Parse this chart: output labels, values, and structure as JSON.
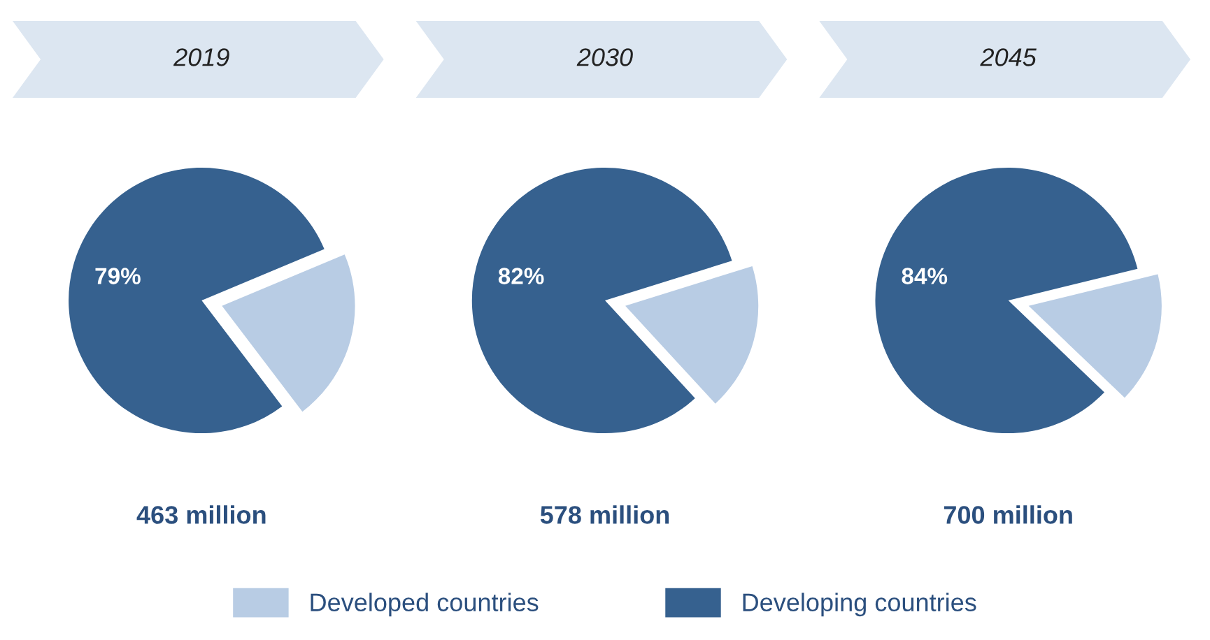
{
  "chart_data": [
    {
      "type": "pie",
      "title": "2019",
      "categories": [
        "Developed countries",
        "Developing countries"
      ],
      "values": [
        21,
        79
      ],
      "colors": [
        "#b8cce4",
        "#36618f"
      ],
      "value_labels": [
        null,
        "79%"
      ],
      "annotations": [
        "463 million"
      ],
      "legend": "bottom"
    },
    {
      "type": "pie",
      "title": "2030",
      "categories": [
        null,
        null
      ],
      "values": [
        18,
        82
      ],
      "colors": [
        "#b8cce4",
        "#36618f"
      ],
      "value_labels": [
        null,
        "82%"
      ],
      "annotations": [
        "578 million"
      ]
    },
    {
      "type": "pie",
      "title": "2045",
      "categories": [
        null,
        null
      ],
      "values": [
        16,
        84
      ],
      "colors": [
        "#b8cce4",
        "#36618f"
      ],
      "value_labels": [
        null,
        "84%"
      ],
      "annotations": [
        "700 million"
      ]
    }
  ]
}
